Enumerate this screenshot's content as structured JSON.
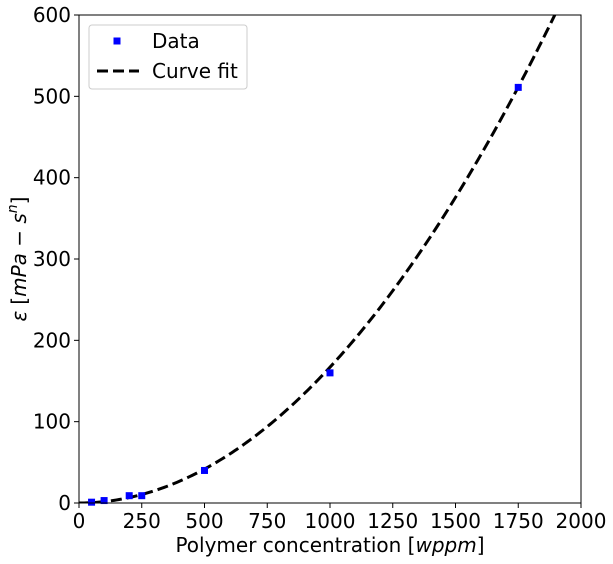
{
  "chart_data": {
    "type": "scatter",
    "xlabel": "Polymer concentration [wppm]",
    "xlabel_plain": "Polymer concentration [",
    "xlabel_italic": "wppm",
    "xlabel_close": "]",
    "ylabel_epsilon": "ε",
    "ylabel_open": "[",
    "ylabel_italic": "mPa − s",
    "ylabel_sup": "n",
    "ylabel_close": "]",
    "xlim": [
      0,
      2000
    ],
    "ylim": [
      0,
      600
    ],
    "xticks": [
      0,
      250,
      500,
      750,
      1000,
      1250,
      1500,
      1750,
      2000
    ],
    "yticks": [
      0,
      100,
      200,
      300,
      400,
      500,
      600
    ],
    "grid": false,
    "legend_position": "top-left",
    "series": [
      {
        "name": "Data",
        "kind": "markers",
        "marker": "square",
        "color": "#0000ff",
        "x": [
          50,
          100,
          200,
          250,
          500,
          1000,
          1750
        ],
        "y": [
          1,
          3,
          9,
          9,
          40,
          160,
          511
        ]
      },
      {
        "name": "Curve fit",
        "kind": "line",
        "style": "dashed",
        "color": "#000000",
        "coef": 0.000167,
        "exponent": 2
      }
    ]
  }
}
